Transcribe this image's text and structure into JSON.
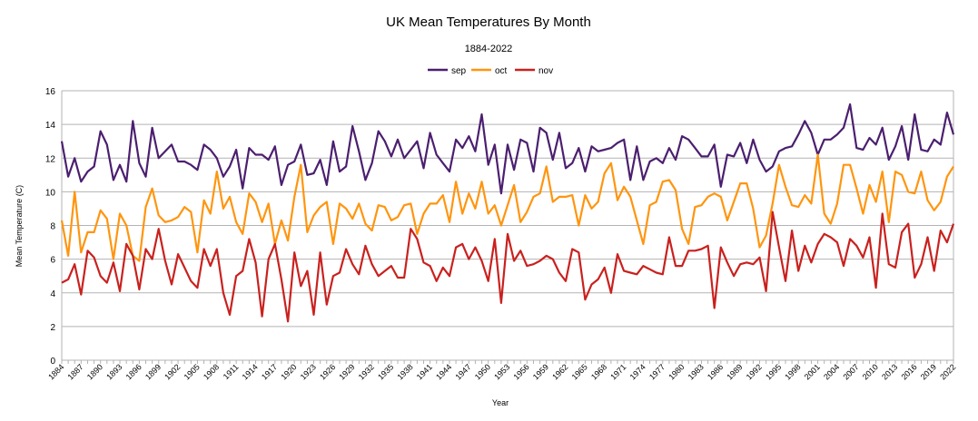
{
  "chart_data": {
    "type": "line",
    "title": "UK Mean Temperatures By Month",
    "subtitle": "1884-2022",
    "xlabel": "Year",
    "ylabel": "Mean Temperature (C)",
    "ylim": [
      0,
      16
    ],
    "yticks": [
      0,
      2,
      4,
      6,
      8,
      10,
      12,
      14,
      16
    ],
    "x_start": 1884,
    "x_end": 2022,
    "xtick_step": 3,
    "grid": true,
    "legend_position": "top-center",
    "series": [
      {
        "name": "sep",
        "color": "#4b1f6f",
        "values": [
          13.0,
          10.9,
          12.0,
          10.6,
          11.2,
          11.5,
          13.6,
          12.8,
          10.7,
          11.6,
          10.6,
          14.2,
          11.7,
          10.9,
          13.8,
          12.0,
          12.4,
          12.8,
          11.8,
          11.8,
          11.6,
          11.3,
          12.8,
          12.5,
          12.0,
          10.9,
          11.5,
          12.5,
          10.2,
          12.6,
          12.2,
          12.2,
          11.9,
          12.7,
          10.4,
          11.6,
          11.8,
          12.8,
          11.0,
          11.1,
          11.9,
          10.4,
          13.0,
          11.2,
          11.5,
          13.9,
          12.4,
          10.7,
          11.7,
          13.6,
          13.0,
          12.1,
          13.1,
          12.0,
          12.5,
          13.0,
          11.4,
          13.5,
          12.2,
          11.7,
          11.2,
          13.1,
          12.6,
          13.3,
          12.4,
          14.6,
          11.6,
          12.8,
          9.9,
          12.8,
          11.3,
          13.1,
          12.9,
          11.2,
          13.8,
          13.5,
          11.9,
          13.5,
          11.4,
          11.7,
          12.6,
          11.2,
          12.7,
          12.4,
          12.5,
          12.6,
          12.9,
          13.1,
          10.7,
          12.7,
          10.7,
          11.8,
          12.0,
          11.7,
          12.6,
          11.9,
          13.3,
          13.1,
          12.6,
          12.1,
          12.1,
          12.8,
          10.3,
          12.2,
          12.1,
          12.9,
          11.7,
          13.1,
          11.9,
          11.2,
          11.5,
          12.4,
          12.6,
          12.7,
          13.4,
          14.2,
          13.5,
          12.2,
          13.1,
          13.1,
          13.4,
          13.8,
          15.2,
          12.6,
          12.5,
          13.2,
          12.8,
          13.8,
          11.9,
          12.7,
          13.9,
          11.9,
          14.6,
          12.5,
          12.4,
          13.1,
          12.8,
          14.7,
          13.4
        ]
      },
      {
        "name": "oct",
        "color": "#ff950e",
        "values": [
          8.3,
          6.2,
          10.0,
          6.4,
          7.6,
          7.6,
          8.9,
          8.4,
          6.0,
          8.7,
          8.0,
          6.2,
          5.9,
          9.1,
          10.2,
          8.6,
          8.2,
          8.3,
          8.5,
          9.1,
          8.8,
          6.4,
          9.5,
          8.7,
          11.2,
          9.0,
          9.7,
          8.2,
          7.5,
          9.9,
          9.4,
          8.2,
          9.3,
          6.9,
          8.3,
          7.1,
          9.7,
          11.6,
          7.6,
          8.6,
          9.1,
          9.4,
          6.9,
          9.3,
          9.0,
          8.4,
          9.3,
          8.1,
          7.7,
          9.2,
          9.1,
          8.3,
          8.5,
          9.2,
          9.3,
          7.5,
          8.7,
          9.3,
          9.3,
          9.8,
          8.2,
          10.6,
          8.7,
          9.9,
          9.0,
          10.6,
          8.7,
          9.2,
          8.0,
          9.2,
          10.4,
          8.2,
          8.8,
          9.7,
          9.9,
          11.5,
          9.4,
          9.7,
          9.7,
          9.8,
          8.0,
          9.8,
          9.0,
          9.4,
          11.1,
          11.7,
          9.5,
          10.3,
          9.7,
          8.3,
          6.9,
          9.2,
          9.4,
          10.6,
          10.7,
          10.1,
          7.8,
          6.9,
          9.1,
          9.2,
          9.7,
          9.9,
          9.7,
          8.3,
          9.4,
          10.5,
          10.5,
          9.0,
          6.7,
          7.4,
          9.3,
          11.6,
          10.3,
          9.2,
          9.1,
          9.8,
          9.3,
          12.2,
          8.7,
          8.1,
          9.3,
          11.6,
          11.6,
          10.2,
          8.7,
          10.4,
          9.4,
          11.2,
          8.2,
          11.2,
          11.0,
          10.0,
          9.9,
          11.2,
          9.5,
          8.9,
          9.4,
          10.9,
          11.5
        ]
      },
      {
        "name": "nov",
        "color": "#c9211e",
        "values": [
          4.6,
          4.8,
          5.7,
          3.9,
          6.5,
          6.1,
          5.0,
          4.6,
          5.8,
          4.1,
          6.9,
          6.2,
          4.2,
          6.6,
          6.0,
          7.8,
          5.9,
          4.5,
          6.3,
          5.5,
          4.7,
          4.3,
          6.6,
          5.6,
          6.6,
          4.0,
          2.7,
          5.0,
          5.3,
          7.2,
          5.8,
          2.6,
          6.0,
          6.9,
          4.8,
          2.3,
          6.4,
          4.4,
          5.3,
          2.7,
          6.4,
          3.3,
          5.0,
          5.2,
          6.6,
          5.7,
          5.1,
          6.8,
          5.7,
          5.0,
          5.3,
          5.6,
          4.9,
          4.9,
          7.8,
          7.2,
          5.8,
          5.6,
          4.7,
          5.5,
          5.0,
          6.7,
          6.9,
          6.0,
          6.7,
          5.9,
          4.7,
          7.2,
          3.4,
          7.5,
          5.9,
          6.5,
          5.6,
          5.7,
          5.9,
          6.2,
          6.0,
          5.2,
          4.7,
          6.6,
          6.4,
          3.6,
          4.5,
          4.8,
          5.5,
          4.0,
          6.3,
          5.3,
          5.2,
          5.1,
          5.6,
          5.4,
          5.2,
          5.1,
          7.3,
          5.6,
          5.6,
          6.5,
          6.5,
          6.6,
          6.8,
          3.1,
          6.7,
          5.8,
          5.0,
          5.7,
          5.8,
          5.7,
          6.1,
          4.1,
          8.8,
          6.7,
          4.7,
          7.7,
          5.3,
          6.8,
          5.8,
          6.9,
          7.5,
          7.3,
          7.0,
          5.6,
          7.2,
          6.8,
          6.1,
          7.3,
          4.3,
          8.7,
          5.7,
          5.5,
          7.6,
          8.1,
          4.9,
          5.7,
          7.3,
          5.3,
          7.7,
          7.0,
          8.1
        ]
      }
    ]
  }
}
